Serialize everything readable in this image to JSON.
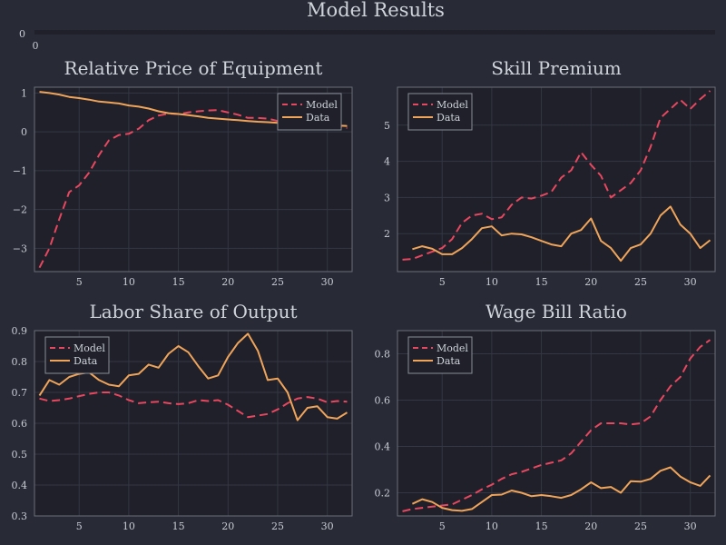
{
  "figure": {
    "title": "Model Results",
    "top_strip": {
      "ytick": "0",
      "xtick": "0"
    }
  },
  "colors": {
    "background": "#282a36",
    "plot_background": "#1f2029",
    "axis": "#6b6e79",
    "grid": "#343643",
    "model": "#e8475f",
    "data": "#f0a45a"
  },
  "chart_data": [
    {
      "type": "line",
      "title": "Relative Price of Equipment",
      "xlim": [
        0.5,
        32.5
      ],
      "ylim": [
        -3.6,
        1.15
      ],
      "xticks": [
        5,
        10,
        15,
        20,
        25,
        30
      ],
      "yticks": [
        -3,
        -2,
        -1,
        0,
        1
      ],
      "ytick_labels": [
        "−3",
        "−2",
        "−1",
        "0",
        "1"
      ],
      "legend_position": "top-right",
      "series": [
        {
          "name": "Model",
          "style": "dashed",
          "x": [
            1,
            2,
            3,
            4,
            5,
            6,
            7,
            8,
            9,
            10,
            11,
            12,
            13,
            14,
            15,
            16,
            17,
            18,
            19,
            20,
            21,
            22,
            23,
            24,
            25,
            26,
            27,
            28,
            29,
            30,
            31,
            32
          ],
          "values": [
            -3.5,
            -3.0,
            -2.25,
            -1.55,
            -1.38,
            -1.05,
            -0.6,
            -0.22,
            -0.08,
            -0.05,
            0.08,
            0.3,
            0.42,
            0.47,
            0.46,
            0.5,
            0.53,
            0.55,
            0.56,
            0.5,
            0.44,
            0.36,
            0.36,
            0.34,
            0.28,
            0.22,
            0.2,
            0.18,
            0.15,
            0.13,
            0.12,
            0.1
          ]
        },
        {
          "name": "Data",
          "style": "solid",
          "x": [
            1,
            2,
            3,
            4,
            5,
            6,
            7,
            8,
            9,
            10,
            11,
            12,
            13,
            14,
            15,
            16,
            17,
            18,
            19,
            20,
            21,
            22,
            23,
            24,
            25,
            26,
            27,
            28,
            29,
            30,
            31,
            32
          ],
          "values": [
            1.03,
            1.0,
            0.96,
            0.9,
            0.87,
            0.83,
            0.78,
            0.76,
            0.73,
            0.68,
            0.65,
            0.6,
            0.53,
            0.48,
            0.46,
            0.43,
            0.4,
            0.36,
            0.34,
            0.32,
            0.3,
            0.28,
            0.26,
            0.25,
            0.23,
            0.22,
            0.2,
            0.19,
            0.18,
            0.17,
            0.16,
            0.15
          ]
        }
      ]
    },
    {
      "type": "line",
      "title": "Skill Premium",
      "xlim": [
        0.5,
        32.5
      ],
      "ylim": [
        0.95,
        6.05
      ],
      "xticks": [
        5,
        10,
        15,
        20,
        25,
        30
      ],
      "yticks": [
        2,
        3,
        4,
        5
      ],
      "ytick_labels": [
        "2",
        "3",
        "4",
        "5"
      ],
      "legend_position": "top-left",
      "series": [
        {
          "name": "Model",
          "style": "dashed",
          "x": [
            1,
            2,
            3,
            4,
            5,
            6,
            7,
            8,
            9,
            10,
            11,
            12,
            13,
            14,
            15,
            16,
            17,
            18,
            19,
            20,
            21,
            22,
            23,
            24,
            25,
            26,
            27,
            28,
            29,
            30,
            31,
            32
          ],
          "values": [
            1.28,
            1.3,
            1.4,
            1.5,
            1.6,
            1.85,
            2.3,
            2.5,
            2.55,
            2.4,
            2.45,
            2.8,
            3.0,
            2.97,
            3.05,
            3.15,
            3.55,
            3.75,
            4.25,
            3.9,
            3.6,
            3.0,
            3.2,
            3.4,
            3.75,
            4.4,
            5.2,
            5.45,
            5.7,
            5.45,
            5.72,
            5.95
          ]
        },
        {
          "name": "Data",
          "style": "solid",
          "x": [
            2,
            3,
            4,
            5,
            6,
            7,
            8,
            9,
            10,
            11,
            12,
            13,
            14,
            15,
            16,
            17,
            18,
            19,
            20,
            21,
            22,
            23,
            24,
            25,
            26,
            27,
            28,
            29,
            30,
            31,
            32
          ],
          "values": [
            1.57,
            1.65,
            1.58,
            1.43,
            1.43,
            1.6,
            1.85,
            2.15,
            2.2,
            1.95,
            2.0,
            1.98,
            1.9,
            1.8,
            1.7,
            1.65,
            2.0,
            2.1,
            2.42,
            1.8,
            1.6,
            1.25,
            1.6,
            1.7,
            2.0,
            2.5,
            2.75,
            2.25,
            2.0,
            1.6,
            1.82
          ]
        }
      ]
    },
    {
      "type": "line",
      "title": "Labor Share of Output",
      "xlim": [
        0.5,
        32.5
      ],
      "ylim": [
        0.3,
        0.9
      ],
      "xticks": [
        5,
        10,
        15,
        20,
        25,
        30
      ],
      "yticks": [
        0.3,
        0.4,
        0.5,
        0.6,
        0.7,
        0.8,
        0.9
      ],
      "ytick_labels": [
        "0.3",
        "0.4",
        "0.5",
        "0.6",
        "0.7",
        "0.8",
        "0.9"
      ],
      "legend_position": "top-left",
      "series": [
        {
          "name": "Model",
          "style": "dashed",
          "x": [
            1,
            2,
            3,
            4,
            5,
            6,
            7,
            8,
            9,
            10,
            11,
            12,
            13,
            14,
            15,
            16,
            17,
            18,
            19,
            20,
            21,
            22,
            23,
            24,
            25,
            26,
            27,
            28,
            29,
            30,
            31,
            32
          ],
          "values": [
            0.68,
            0.672,
            0.675,
            0.68,
            0.688,
            0.695,
            0.7,
            0.7,
            0.69,
            0.675,
            0.665,
            0.668,
            0.67,
            0.665,
            0.662,
            0.665,
            0.675,
            0.672,
            0.675,
            0.66,
            0.64,
            0.62,
            0.625,
            0.63,
            0.645,
            0.665,
            0.68,
            0.685,
            0.68,
            0.668,
            0.672,
            0.67
          ]
        },
        {
          "name": "Data",
          "style": "solid",
          "x": [
            1,
            2,
            3,
            4,
            5,
            6,
            7,
            8,
            9,
            10,
            11,
            12,
            13,
            14,
            15,
            16,
            17,
            18,
            19,
            20,
            21,
            22,
            23,
            24,
            25,
            26,
            27,
            28,
            29,
            30,
            31,
            32
          ],
          "values": [
            0.69,
            0.74,
            0.725,
            0.75,
            0.76,
            0.765,
            0.74,
            0.725,
            0.72,
            0.755,
            0.76,
            0.79,
            0.78,
            0.825,
            0.85,
            0.83,
            0.785,
            0.745,
            0.755,
            0.815,
            0.86,
            0.89,
            0.835,
            0.74,
            0.745,
            0.7,
            0.61,
            0.65,
            0.655,
            0.62,
            0.615,
            0.635
          ]
        }
      ]
    },
    {
      "type": "line",
      "title": "Wage Bill Ratio",
      "xlim": [
        0.5,
        32.5
      ],
      "ylim": [
        0.1,
        0.9
      ],
      "xticks": [
        5,
        10,
        15,
        20,
        25,
        30
      ],
      "yticks": [
        0.2,
        0.4,
        0.6,
        0.8
      ],
      "ytick_labels": [
        "0.2",
        "0.4",
        "0.6",
        "0.8"
      ],
      "legend_position": "top-left",
      "series": [
        {
          "name": "Model",
          "style": "dashed",
          "x": [
            1,
            2,
            3,
            4,
            5,
            6,
            7,
            8,
            9,
            10,
            11,
            12,
            13,
            14,
            15,
            16,
            17,
            18,
            19,
            20,
            21,
            22,
            23,
            24,
            25,
            26,
            27,
            28,
            29,
            30,
            31,
            32
          ],
          "values": [
            0.12,
            0.13,
            0.135,
            0.14,
            0.145,
            0.15,
            0.17,
            0.19,
            0.215,
            0.235,
            0.26,
            0.28,
            0.29,
            0.305,
            0.32,
            0.33,
            0.34,
            0.37,
            0.42,
            0.47,
            0.5,
            0.5,
            0.5,
            0.495,
            0.5,
            0.53,
            0.6,
            0.66,
            0.7,
            0.78,
            0.83,
            0.86
          ]
        },
        {
          "name": "Data",
          "style": "solid",
          "x": [
            2,
            3,
            4,
            5,
            6,
            7,
            8,
            9,
            10,
            11,
            12,
            13,
            14,
            15,
            16,
            17,
            18,
            19,
            20,
            21,
            22,
            23,
            24,
            25,
            26,
            27,
            28,
            29,
            30,
            31,
            32
          ],
          "values": [
            0.152,
            0.172,
            0.16,
            0.135,
            0.125,
            0.122,
            0.13,
            0.16,
            0.19,
            0.192,
            0.21,
            0.2,
            0.185,
            0.19,
            0.185,
            0.178,
            0.19,
            0.215,
            0.245,
            0.22,
            0.225,
            0.2,
            0.25,
            0.248,
            0.26,
            0.295,
            0.31,
            0.27,
            0.245,
            0.23,
            0.275
          ]
        }
      ]
    }
  ]
}
